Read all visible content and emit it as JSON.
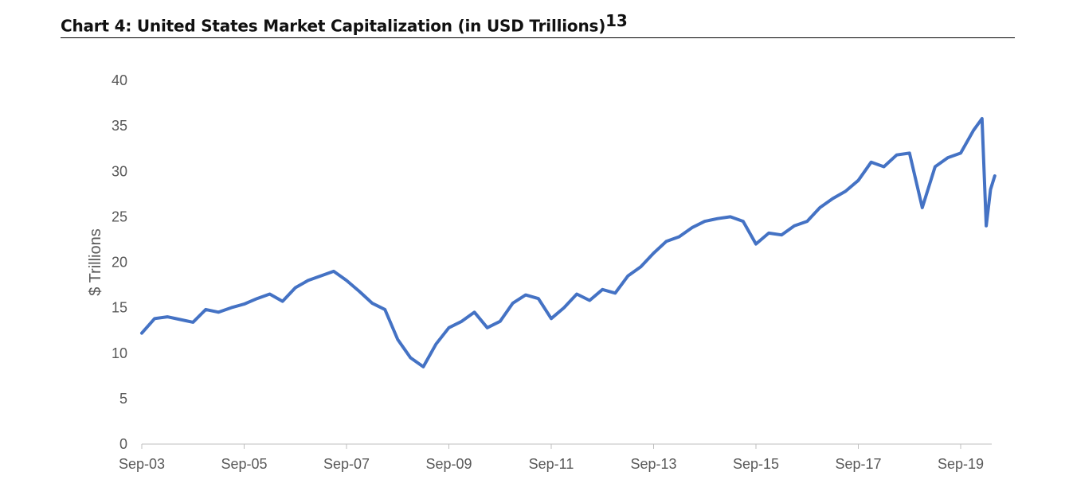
{
  "chart_data": {
    "type": "line",
    "title": "Chart 4: United States Market Capitalization (in USD Trillions)",
    "title_footnote": "13",
    "xlabel": "",
    "ylabel": "$ Trillions",
    "ylim": [
      0,
      40
    ],
    "yticks": [
      0,
      5,
      10,
      15,
      20,
      25,
      30,
      35,
      40
    ],
    "xticks": [
      "Sep-03",
      "Sep-05",
      "Sep-07",
      "Sep-09",
      "Sep-11",
      "Sep-13",
      "Sep-15",
      "Sep-17",
      "Sep-19"
    ],
    "grid": false,
    "line_color": "#4472C4",
    "series": [
      {
        "x": [
          "2003-09",
          "2003-12",
          "2004-03",
          "2004-06",
          "2004-09",
          "2004-12",
          "2005-03",
          "2005-06",
          "2005-09",
          "2005-12",
          "2006-03",
          "2006-06",
          "2006-09",
          "2006-12",
          "2007-03",
          "2007-06",
          "2007-09",
          "2007-12",
          "2008-03",
          "2008-06",
          "2008-09",
          "2008-12",
          "2009-03",
          "2009-06",
          "2009-09",
          "2009-12",
          "2010-03",
          "2010-06",
          "2010-09",
          "2010-12",
          "2011-03",
          "2011-06",
          "2011-09",
          "2011-12",
          "2012-03",
          "2012-06",
          "2012-09",
          "2012-12",
          "2013-03",
          "2013-06",
          "2013-09",
          "2013-12",
          "2014-03",
          "2014-06",
          "2014-09",
          "2014-12",
          "2015-03",
          "2015-06",
          "2015-09",
          "2015-12",
          "2016-03",
          "2016-06",
          "2016-09",
          "2016-12",
          "2017-03",
          "2017-06",
          "2017-09",
          "2017-12",
          "2018-03",
          "2018-06",
          "2018-09",
          "2018-12",
          "2019-03",
          "2019-06",
          "2019-09",
          "2019-12",
          "2020-02",
          "2020-03",
          "2020-04",
          "2020-05"
        ],
        "values": [
          12.2,
          13.8,
          14.0,
          13.7,
          13.4,
          14.8,
          14.5,
          15.0,
          15.4,
          16.0,
          16.5,
          15.7,
          17.2,
          18.0,
          18.5,
          19.0,
          18.0,
          16.8,
          15.5,
          14.8,
          11.5,
          9.5,
          8.5,
          11.0,
          12.8,
          13.5,
          14.5,
          12.8,
          13.5,
          15.5,
          16.4,
          16.0,
          13.8,
          15.0,
          16.5,
          15.8,
          17.0,
          16.6,
          18.5,
          19.5,
          21.0,
          22.3,
          22.8,
          23.8,
          24.5,
          24.8,
          25.0,
          24.5,
          22.0,
          23.2,
          23.0,
          24.0,
          24.5,
          26.0,
          27.0,
          27.8,
          29.0,
          31.0,
          30.5,
          31.8,
          32.0,
          26.0,
          30.5,
          31.5,
          32.0,
          34.5,
          35.8,
          24.0,
          28.0,
          29.5
        ]
      }
    ]
  }
}
